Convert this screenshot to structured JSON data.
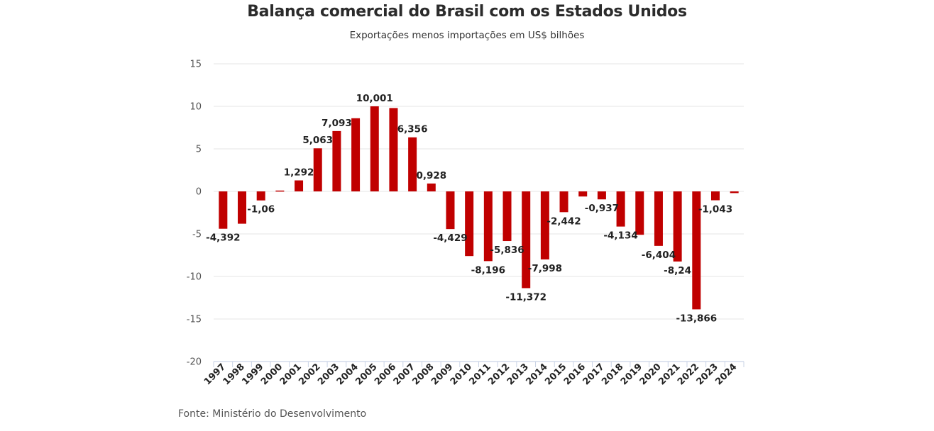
{
  "header": {
    "title": "Balança comercial do Brasil com os Estados Unidos",
    "subtitle": "Exportações menos importações em US$ bilhões"
  },
  "footer": {
    "source": "Fonte: Ministério do Desenvolvimento"
  },
  "colors": {
    "bar": "#c00000",
    "grid": "#e6e6e6",
    "axis": "#c9d3e6"
  },
  "chart_data": {
    "type": "bar",
    "title": "Balança comercial do Brasil com os Estados Unidos",
    "subtitle": "Exportações menos importações em US$ bilhões",
    "xlabel": "",
    "ylabel": "",
    "ylim": [
      -20,
      15
    ],
    "yticks": [
      15,
      10,
      5,
      0,
      -5,
      -10,
      -15,
      -20
    ],
    "grid": true,
    "categories": [
      "1997",
      "1998",
      "1999",
      "2000",
      "2001",
      "2002",
      "2003",
      "2004",
      "2005",
      "2006",
      "2007",
      "2008",
      "2009",
      "2010",
      "2011",
      "2012",
      "2013",
      "2014",
      "2015",
      "2016",
      "2017",
      "2018",
      "2019",
      "2020",
      "2021",
      "2022",
      "2023",
      "2024"
    ],
    "values": [
      -4.392,
      -3.8,
      -1.06,
      0.1,
      1.292,
      5.063,
      7.093,
      8.6,
      10.001,
      9.8,
      6.356,
      0.928,
      -4.429,
      -7.6,
      -8.196,
      -5.836,
      -11.372,
      -7.998,
      -2.442,
      -0.6,
      -0.937,
      -4.134,
      -5.1,
      -6.404,
      -8.24,
      -13.866,
      -1.043,
      -0.2
    ],
    "data_labels": [
      "-4,392",
      "",
      "-1,06",
      "",
      "1,292",
      "5,063",
      "7,093",
      "",
      "10,001",
      "",
      "6,356",
      "0,928",
      "-4,429",
      "",
      "-8,196",
      "-5,836",
      "-11,372",
      "-7,998",
      "-2,442",
      "",
      "-0,937",
      "-4,134",
      "",
      "-6,404",
      "-8,24",
      "-13,866",
      "-1,043",
      ""
    ]
  }
}
